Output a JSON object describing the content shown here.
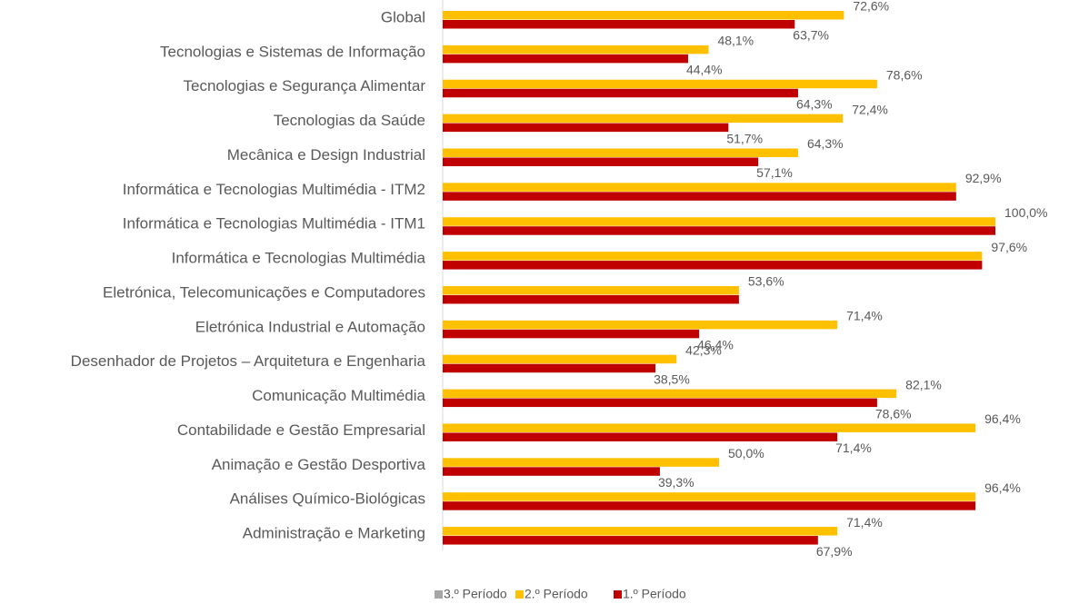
{
  "chart_data": {
    "type": "hbar",
    "categories": [
      "Global",
      "Tecnologias e Sistemas de Informação",
      "Tecnologias e Segurança Alimentar",
      "Tecnologias da Saúde",
      "Mecânica e Design Industrial",
      "Informática e Tecnologias Multimédia - ITM2",
      "Informática e Tecnologias Multimédia - ITM1",
      "Informática e Tecnologias Multimédia",
      "Eletrónica, Telecomunicações e Computadores",
      "Eletrónica Industrial e Automação",
      "Desenhador de Projetos – Arquitetura e Engenharia",
      "Comunicação Multimédia",
      "Contabilidade e Gestão Empresarial",
      "Animação e Gestão Desportiva",
      "Análises Químico-Biológicas",
      "Administração e Marketing"
    ],
    "series": [
      {
        "name": "3.º Período",
        "color": "#a5a5a5",
        "values": [
          null,
          null,
          null,
          null,
          null,
          null,
          null,
          null,
          null,
          null,
          null,
          null,
          null,
          null,
          null,
          null
        ]
      },
      {
        "name": "2.º Período",
        "color": "#ffc000",
        "values": [
          72.6,
          48.1,
          78.6,
          72.4,
          64.3,
          92.9,
          100.0,
          97.6,
          53.6,
          71.4,
          42.3,
          82.1,
          96.4,
          50.0,
          96.4,
          71.4
        ],
        "value_labels": [
          "72,6%",
          "48,1%",
          "78,6%",
          "72,4%",
          "64,3%",
          "92,9%",
          "100,0%",
          "97,6%",
          "53,6%",
          "71,4%",
          "42,3%",
          "82,1%",
          "96,4%",
          "50,0%",
          "96,4%",
          "71,4%"
        ]
      },
      {
        "name": "1.º Período",
        "color": "#c00000",
        "values": [
          63.7,
          44.4,
          64.3,
          51.7,
          57.1,
          92.9,
          100.0,
          97.6,
          53.6,
          46.4,
          38.5,
          78.6,
          71.4,
          39.3,
          96.4,
          67.9
        ],
        "value_labels": [
          "63,7%",
          "44,4%",
          "64,3%",
          "51,7%",
          "57,1%",
          null,
          null,
          null,
          null,
          "46,4%",
          "38,5%",
          "78,6%",
          "71,4%",
          "39,3%",
          null,
          "67,9%"
        ]
      }
    ],
    "xlim": [
      0,
      100
    ],
    "legend": "bottom"
  }
}
